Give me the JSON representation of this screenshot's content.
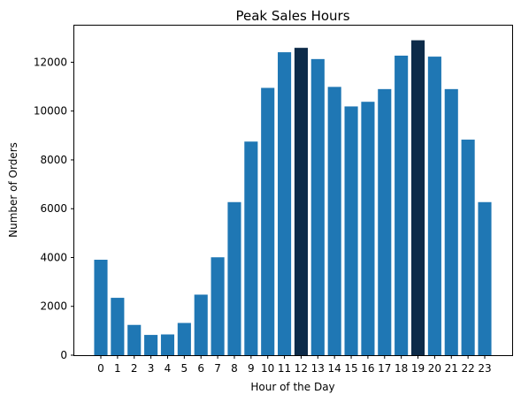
{
  "chart_data": {
    "type": "bar",
    "title": "Peak Sales Hours",
    "xlabel": "Hour of the Day",
    "ylabel": "Number of Orders",
    "categories": [
      "0",
      "1",
      "2",
      "3",
      "4",
      "5",
      "6",
      "7",
      "8",
      "9",
      "10",
      "11",
      "12",
      "13",
      "14",
      "15",
      "16",
      "17",
      "18",
      "19",
      "20",
      "21",
      "22",
      "23"
    ],
    "values": [
      3910,
      2350,
      1240,
      830,
      850,
      1320,
      2480,
      4010,
      6270,
      8750,
      10950,
      12410,
      12590,
      12130,
      10990,
      10190,
      10380,
      10900,
      12270,
      12900,
      12230,
      10900,
      8830,
      6270
    ],
    "highlighted": [
      "12",
      "19"
    ],
    "ylim": [
      0,
      13500
    ],
    "yticks": [
      0,
      2000,
      4000,
      6000,
      8000,
      10000,
      12000
    ],
    "grid": false,
    "colors": {
      "bar": "#1f77b4",
      "highlight": "#0d2b49"
    }
  }
}
